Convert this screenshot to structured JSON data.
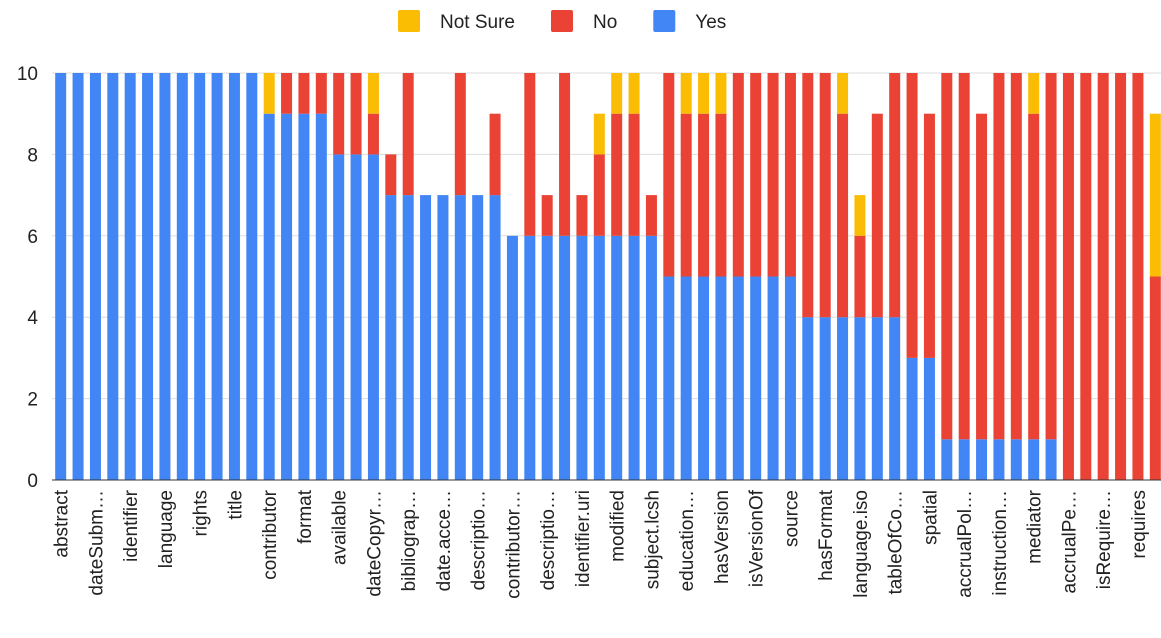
{
  "chart_data": {
    "type": "stacked_bar",
    "categories": [
      "abstract",
      null,
      "dateSubm…",
      null,
      "identifier",
      null,
      "language",
      null,
      "rights",
      null,
      "title",
      null,
      "contributor",
      null,
      "format",
      null,
      "available",
      null,
      "dateCopyr…",
      null,
      "bibliograp…",
      null,
      "date.acce…",
      null,
      "descriptio…",
      null,
      "contributor…",
      null,
      "descriptio…",
      null,
      "identifier.uri",
      null,
      "modified",
      null,
      "subject.lcsh",
      null,
      "education…",
      null,
      "hasVersion",
      null,
      "isVersionOf",
      null,
      "source",
      null,
      "hasFormat",
      null,
      "language.iso",
      null,
      "tableOfCo…",
      null,
      "spatial",
      null,
      "accrualPol…",
      null,
      "instruction…",
      null,
      "mediator",
      null,
      "accrualPe…",
      null,
      "isRequire…",
      null,
      "requires",
      null
    ],
    "series": [
      {
        "name": "Not Sure",
        "color": "#fbbc04",
        "values": [
          0,
          0,
          0,
          0,
          0,
          0,
          0,
          0,
          0,
          0,
          0,
          0,
          1,
          0,
          0,
          0,
          0,
          0,
          1,
          0,
          0,
          0,
          0,
          0,
          0,
          0,
          0,
          0,
          0,
          0,
          0,
          1,
          1,
          1,
          0,
          0,
          1,
          1,
          1,
          0,
          0,
          0,
          0,
          0,
          0,
          1,
          1,
          0,
          0,
          0,
          0,
          0,
          0,
          0,
          0,
          0,
          1,
          0,
          0,
          0,
          0,
          0,
          0,
          4
        ]
      },
      {
        "name": "No",
        "color": "#ea4335",
        "values": [
          0,
          0,
          0,
          0,
          0,
          0,
          0,
          0,
          0,
          0,
          0,
          0,
          0,
          1,
          1,
          1,
          2,
          2,
          1,
          1,
          3,
          0,
          0,
          3,
          0,
          2,
          0,
          4,
          1,
          4,
          1,
          2,
          3,
          3,
          1,
          5,
          4,
          4,
          4,
          5,
          5,
          5,
          5,
          6,
          6,
          5,
          2,
          5,
          6,
          7,
          6,
          9,
          9,
          8,
          9,
          9,
          8,
          9,
          10,
          10,
          10,
          10,
          10,
          5
        ]
      },
      {
        "name": "Yes",
        "color": "#4285f4",
        "values": [
          10,
          10,
          10,
          10,
          10,
          10,
          10,
          10,
          10,
          10,
          10,
          10,
          9,
          9,
          9,
          9,
          8,
          8,
          8,
          7,
          7,
          7,
          7,
          7,
          7,
          7,
          6,
          6,
          6,
          6,
          6,
          6,
          6,
          6,
          6,
          5,
          5,
          5,
          5,
          5,
          5,
          5,
          5,
          4,
          4,
          4,
          4,
          4,
          4,
          3,
          3,
          1,
          1,
          1,
          1,
          1,
          1,
          1,
          0,
          0,
          0,
          0,
          0,
          0
        ]
      }
    ],
    "ylim": [
      0,
      10
    ],
    "yticks": [
      0,
      2,
      4,
      6,
      8,
      10
    ],
    "grid": true,
    "legend": "top"
  }
}
